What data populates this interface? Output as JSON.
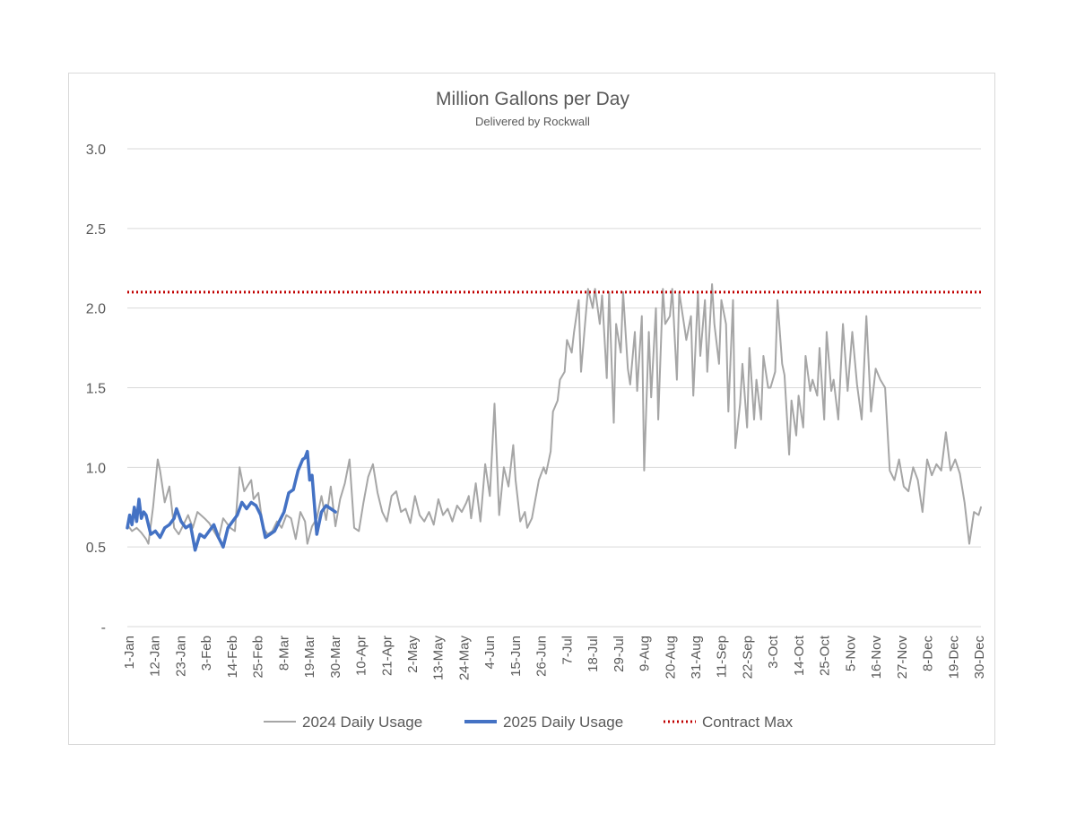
{
  "chart_data": {
    "type": "line",
    "title": "Million Gallons per Day",
    "subtitle": "Delivered by Rockwall",
    "xlabel": "",
    "ylabel": "",
    "ylim": [
      0,
      3.0
    ],
    "y_ticks": [
      "-",
      "0.5",
      "1.0",
      "1.5",
      "2.0",
      "2.5",
      "3.0"
    ],
    "y_tick_values": [
      0,
      0.5,
      1.0,
      1.5,
      2.0,
      2.5,
      3.0
    ],
    "x_range_days": [
      1,
      366
    ],
    "x_tick_labels": [
      "1-Jan",
      "12-Jan",
      "23-Jan",
      "3-Feb",
      "14-Feb",
      "25-Feb",
      "8-Mar",
      "19-Mar",
      "30-Mar",
      "10-Apr",
      "21-Apr",
      "2-May",
      "13-May",
      "24-May",
      "4-Jun",
      "15-Jun",
      "26-Jun",
      "7-Jul",
      "18-Jul",
      "29-Jul",
      "9-Aug",
      "20-Aug",
      "31-Aug",
      "11-Sep",
      "22-Sep",
      "3-Oct",
      "14-Oct",
      "25-Oct",
      "5-Nov",
      "16-Nov",
      "27-Nov",
      "8-Dec",
      "19-Dec",
      "30-Dec"
    ],
    "grid": true,
    "legend_position": "bottom",
    "colors": {
      "2024": "#a6a6a6",
      "2025": "#4472c4",
      "contract": "#c00000",
      "grid": "#d9d9d9",
      "text": "#595959"
    },
    "series": [
      {
        "name": "2024 Daily Usage",
        "key": "2024",
        "day_of_year": [
          1,
          3,
          5,
          7,
          9,
          10,
          12,
          14,
          15,
          17,
          19,
          21,
          23,
          25,
          27,
          29,
          31,
          34,
          36,
          38,
          40,
          42,
          45,
          47,
          49,
          51,
          54,
          55,
          57,
          59,
          61,
          63,
          65,
          67,
          69,
          71,
          73,
          75,
          77,
          78,
          80,
          82,
          84,
          86,
          88,
          90,
          92,
          94,
          96,
          98,
          100,
          102,
          104,
          106,
          108,
          110,
          112,
          114,
          116,
          118,
          120,
          122,
          124,
          126,
          128,
          130,
          132,
          134,
          136,
          138,
          140,
          142,
          144,
          146,
          147,
          148,
          150,
          152,
          154,
          156,
          158,
          160,
          162,
          164,
          166,
          167,
          169,
          171,
          172,
          174,
          176,
          177,
          179,
          180,
          182,
          183,
          185,
          186,
          188,
          189,
          191,
          192,
          194,
          195,
          197,
          198,
          200,
          201,
          203,
          204,
          206,
          207,
          209,
          210,
          212,
          213,
          215,
          216,
          218,
          219,
          221,
          222,
          224,
          225,
          227,
          228,
          230,
          231,
          233,
          234,
          236,
          237,
          239,
          240,
          242,
          243,
          245,
          246,
          248,
          249,
          251,
          252,
          254,
          255,
          257,
          258,
          260,
          261,
          263,
          264,
          266,
          267,
          269,
          270,
          272,
          273,
          275,
          276,
          278,
          279,
          281,
          282,
          284,
          285,
          287,
          288,
          290,
          291,
          293,
          294,
          296,
          297,
          299,
          300,
          302,
          303,
          305,
          307,
          309,
          311,
          313,
          315,
          317,
          319,
          321,
          323,
          325,
          327,
          329,
          331,
          333,
          335,
          337,
          339,
          341,
          343,
          345,
          347,
          349,
          351,
          353,
          355,
          357,
          359,
          361,
          363,
          365,
          366
        ],
        "values": [
          0.64,
          0.6,
          0.62,
          0.59,
          0.55,
          0.52,
          0.75,
          1.05,
          0.98,
          0.78,
          0.88,
          0.62,
          0.58,
          0.64,
          0.7,
          0.62,
          0.72,
          0.68,
          0.65,
          0.6,
          0.55,
          0.68,
          0.62,
          0.6,
          1.0,
          0.85,
          0.92,
          0.8,
          0.84,
          0.62,
          0.58,
          0.6,
          0.66,
          0.62,
          0.7,
          0.68,
          0.55,
          0.72,
          0.66,
          0.52,
          0.63,
          0.68,
          0.82,
          0.67,
          0.88,
          0.63,
          0.8,
          0.9,
          1.05,
          0.62,
          0.6,
          0.78,
          0.94,
          1.02,
          0.84,
          0.72,
          0.66,
          0.82,
          0.85,
          0.72,
          0.74,
          0.65,
          0.82,
          0.7,
          0.66,
          0.72,
          0.64,
          0.8,
          0.7,
          0.74,
          0.66,
          0.76,
          0.72,
          0.78,
          0.82,
          0.68,
          0.9,
          0.66,
          1.02,
          0.82,
          1.4,
          0.7,
          1.0,
          0.88,
          1.14,
          0.92,
          0.66,
          0.72,
          0.62,
          0.68,
          0.84,
          0.92,
          1.0,
          0.96,
          1.1,
          1.35,
          1.42,
          1.55,
          1.6,
          1.8,
          1.72,
          1.85,
          2.05,
          1.6,
          1.95,
          2.12,
          2.0,
          2.12,
          1.9,
          2.08,
          1.56,
          2.1,
          1.28,
          1.9,
          1.72,
          2.1,
          1.62,
          1.52,
          1.85,
          1.48,
          1.95,
          0.98,
          1.85,
          1.44,
          2.0,
          1.3,
          2.12,
          1.9,
          1.95,
          2.12,
          1.55,
          2.1,
          1.9,
          1.8,
          1.95,
          1.45,
          2.1,
          1.7,
          2.05,
          1.6,
          2.15,
          1.9,
          1.65,
          2.05,
          1.9,
          1.35,
          2.05,
          1.12,
          1.4,
          1.65,
          1.25,
          1.75,
          1.3,
          1.55,
          1.3,
          1.7,
          1.5,
          1.5,
          1.6,
          2.05,
          1.65,
          1.58,
          1.08,
          1.42,
          1.2,
          1.45,
          1.25,
          1.7,
          1.48,
          1.55,
          1.45,
          1.75,
          1.3,
          1.85,
          1.48,
          1.55,
          1.3,
          1.9,
          1.48,
          1.85,
          1.52,
          1.3,
          1.95,
          1.35,
          1.62,
          1.55,
          1.5,
          0.98,
          0.92,
          1.05,
          0.88,
          0.85,
          1.0,
          0.92,
          0.72,
          1.05,
          0.95,
          1.02,
          0.98,
          1.22,
          0.98,
          1.05,
          0.96,
          0.78,
          0.52,
          0.72,
          0.7,
          0.75,
          0.68,
          0.65,
          0.58,
          0.62,
          0.64,
          0.7,
          0.58,
          0.55,
          0.64,
          0.62
        ]
      },
      {
        "name": "2025 Daily Usage",
        "key": "2025",
        "day_of_year": [
          1,
          2,
          3,
          4,
          5,
          6,
          7,
          8,
          9,
          11,
          13,
          15,
          17,
          19,
          21,
          22,
          24,
          26,
          28,
          30,
          32,
          34,
          36,
          38,
          40,
          42,
          44,
          46,
          48,
          50,
          52,
          54,
          56,
          58,
          60,
          62,
          64,
          66,
          68,
          70,
          72,
          74,
          76,
          77,
          78,
          79,
          80,
          82,
          84,
          86,
          88,
          90
        ],
        "values": [
          0.62,
          0.7,
          0.64,
          0.75,
          0.66,
          0.8,
          0.68,
          0.72,
          0.7,
          0.58,
          0.6,
          0.56,
          0.62,
          0.64,
          0.68,
          0.74,
          0.66,
          0.62,
          0.64,
          0.48,
          0.58,
          0.56,
          0.6,
          0.64,
          0.56,
          0.5,
          0.62,
          0.66,
          0.7,
          0.78,
          0.74,
          0.78,
          0.76,
          0.7,
          0.56,
          0.58,
          0.6,
          0.66,
          0.72,
          0.84,
          0.86,
          0.98,
          1.05,
          1.06,
          1.1,
          0.92,
          0.95,
          0.58,
          0.72,
          0.76,
          0.74,
          0.72
        ]
      },
      {
        "name": "Contract Max",
        "key": "contract",
        "values": [
          2.1,
          2.1
        ]
      }
    ]
  }
}
